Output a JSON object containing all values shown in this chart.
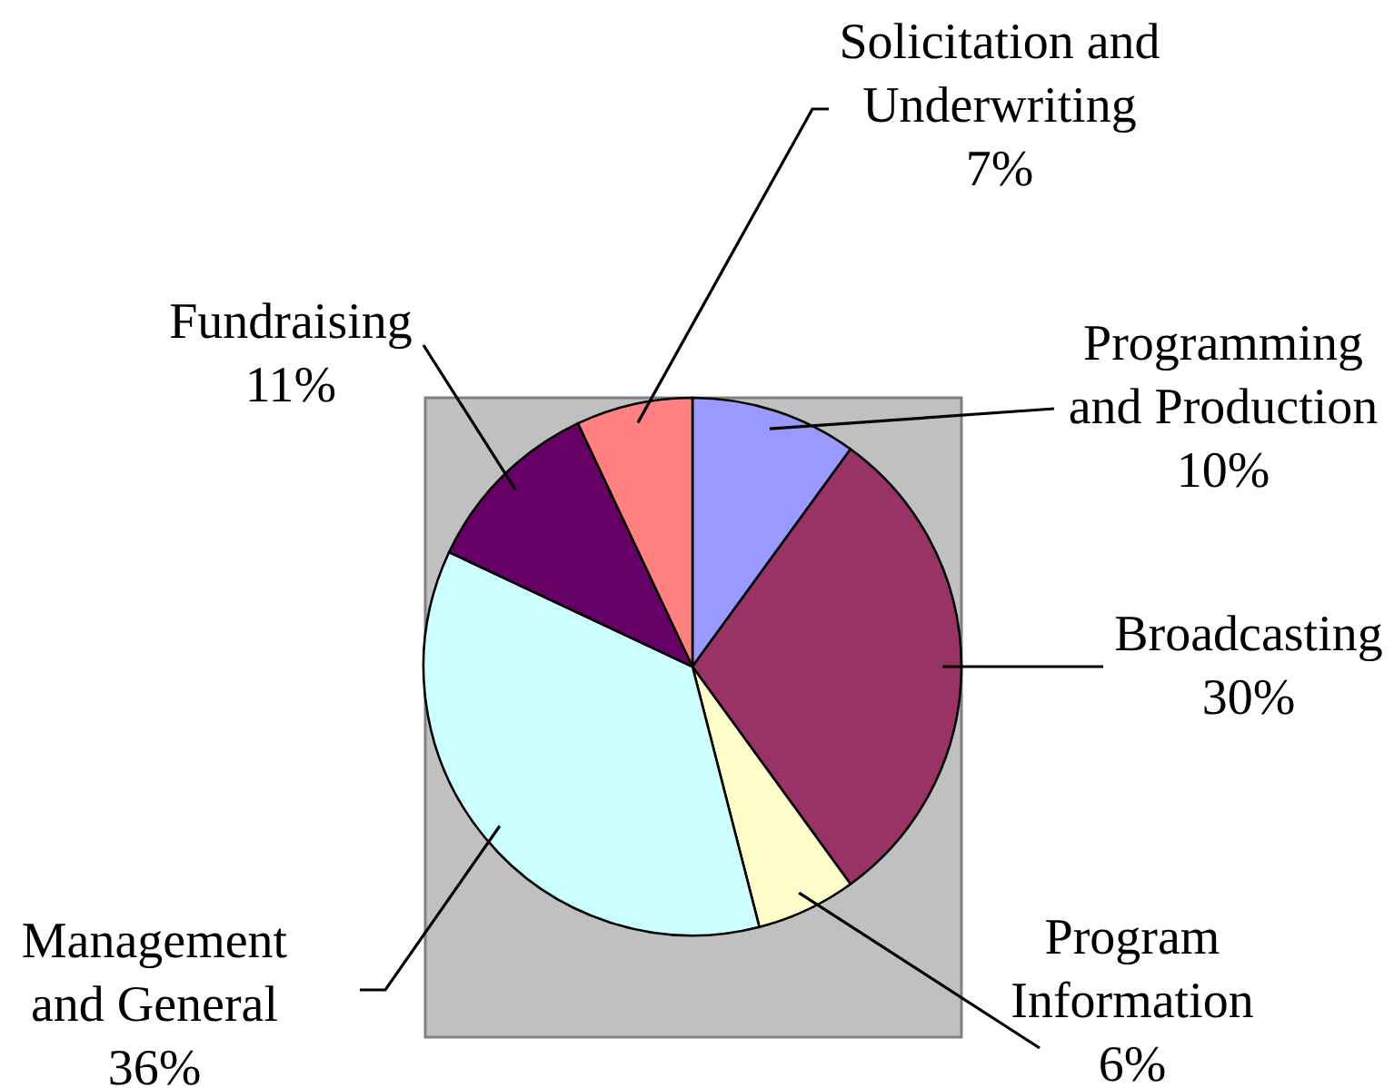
{
  "chart_data": {
    "type": "pie",
    "categories": [
      "Programming and Production",
      "Broadcasting",
      "Program Information",
      "Management and General",
      "Fundraising",
      "Solicitation and Underwriting"
    ],
    "values": [
      10,
      30,
      6,
      36,
      11,
      7
    ],
    "colors": [
      "#9999ff",
      "#993366",
      "#ffffcc",
      "#ccffff",
      "#660066",
      "#ff8080"
    ],
    "value_labels": [
      "10%",
      "30%",
      "6%",
      "36%",
      "11%",
      "7%"
    ]
  }
}
